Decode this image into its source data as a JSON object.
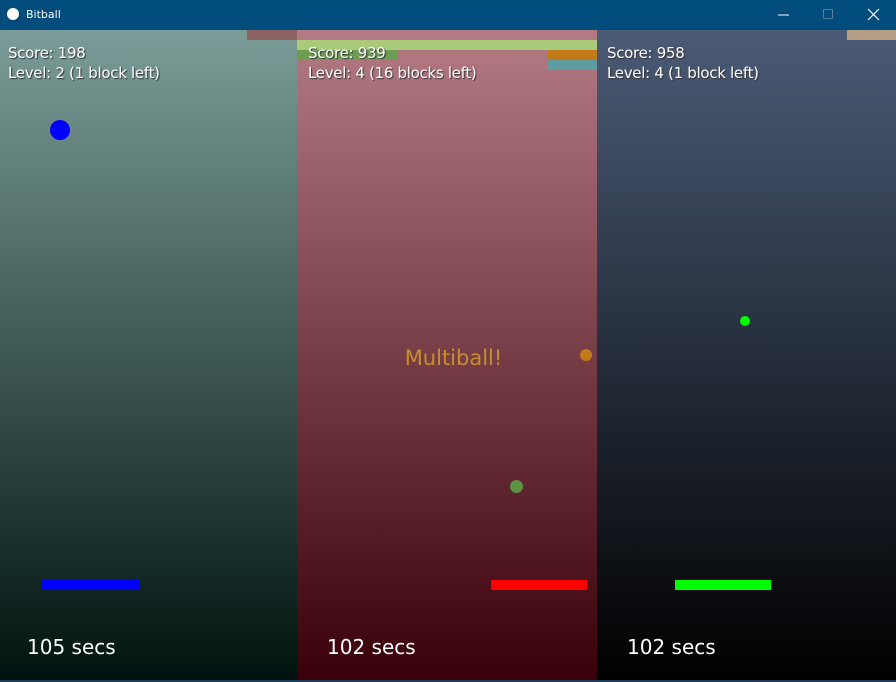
{
  "window": {
    "title": "Bitball"
  },
  "panels": [
    {
      "score": "Score: 198",
      "level": "Level: 2 (1 block left)",
      "timer": "105 secs"
    },
    {
      "score": "Score: 939",
      "level": "Level: 4 (16 blocks left)",
      "timer": "102 secs",
      "message": "Multiball!"
    },
    {
      "score": "Score: 958",
      "level": "Level: 4 (1 block left)",
      "timer": "102 secs"
    }
  ]
}
